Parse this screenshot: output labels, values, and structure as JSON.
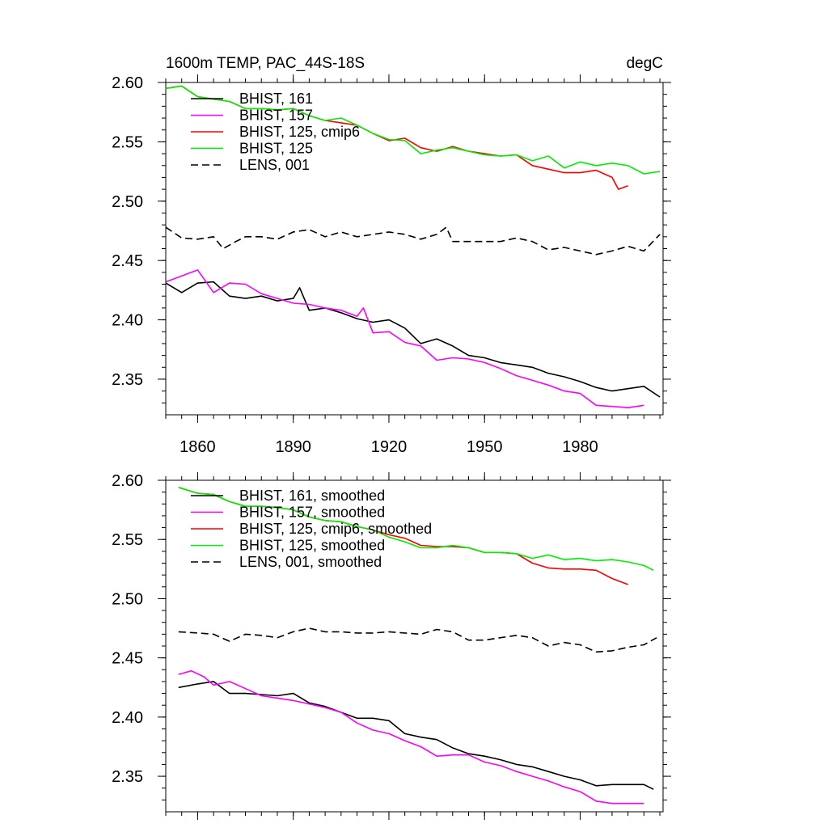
{
  "chart_data": [
    {
      "type": "line",
      "title_left": "1600m TEMP, PAC_44S-18S",
      "title_right": "degC",
      "xlim": [
        1850,
        2006
      ],
      "ylim": [
        2.32,
        2.6
      ],
      "y_ticks": [
        "2.60",
        "2.55",
        "2.50",
        "2.45",
        "2.40",
        "2.35"
      ],
      "y_tick_values": [
        2.6,
        2.55,
        2.5,
        2.45,
        2.4,
        2.35
      ],
      "x_ticks": [
        "1860",
        "1890",
        "1920",
        "1950",
        "1980"
      ],
      "x_tick_values": [
        1860,
        1890,
        1920,
        1950,
        1980
      ],
      "legend_position": "top-left",
      "series": [
        {
          "name": "BHIST, 161",
          "color": "#000000",
          "dash": "solid",
          "x": [
            1850,
            1855,
            1860,
            1865,
            1870,
            1875,
            1880,
            1885,
            1890,
            1892,
            1895,
            1900,
            1905,
            1910,
            1915,
            1920,
            1925,
            1930,
            1935,
            1940,
            1945,
            1950,
            1955,
            1960,
            1965,
            1970,
            1975,
            1980,
            1985,
            1990,
            1995,
            2000,
            2005
          ],
          "y": [
            2.431,
            2.423,
            2.431,
            2.432,
            2.42,
            2.418,
            2.42,
            2.416,
            2.418,
            2.427,
            2.408,
            2.41,
            2.406,
            2.401,
            2.398,
            2.4,
            2.393,
            2.38,
            2.384,
            2.378,
            2.37,
            2.368,
            2.364,
            2.362,
            2.36,
            2.355,
            2.352,
            2.348,
            2.343,
            2.34,
            2.342,
            2.344,
            2.335
          ]
        },
        {
          "name": "BHIST, 157",
          "color": "#ff00ff",
          "dash": "solid",
          "x": [
            1850,
            1855,
            1860,
            1865,
            1870,
            1875,
            1880,
            1885,
            1890,
            1895,
            1900,
            1905,
            1910,
            1912,
            1915,
            1920,
            1925,
            1930,
            1935,
            1940,
            1945,
            1950,
            1955,
            1960,
            1965,
            1970,
            1975,
            1980,
            1985,
            1990,
            1995,
            2000
          ],
          "y": [
            2.432,
            2.437,
            2.442,
            2.423,
            2.431,
            2.43,
            2.422,
            2.418,
            2.414,
            2.413,
            2.41,
            2.408,
            2.403,
            2.41,
            2.389,
            2.39,
            2.381,
            2.378,
            2.366,
            2.368,
            2.367,
            2.364,
            2.359,
            2.353,
            2.349,
            2.345,
            2.34,
            2.338,
            2.328,
            2.327,
            2.326,
            2.328
          ]
        },
        {
          "name": "BHIST, 125, cmip6",
          "color": "#ff0000",
          "dash": "solid",
          "x": [
            1850,
            1855,
            1860,
            1865,
            1870,
            1875,
            1880,
            1885,
            1890,
            1895,
            1900,
            1905,
            1910,
            1915,
            1920,
            1925,
            1930,
            1935,
            1940,
            1945,
            1950,
            1955,
            1960,
            1965,
            1970,
            1975,
            1980,
            1985,
            1990,
            1992,
            1995
          ],
          "y": [
            2.595,
            2.597,
            2.588,
            2.586,
            2.584,
            2.578,
            2.578,
            2.577,
            2.578,
            2.572,
            2.568,
            2.566,
            2.564,
            2.557,
            2.551,
            2.553,
            2.545,
            2.542,
            2.546,
            2.542,
            2.54,
            2.538,
            2.539,
            2.53,
            2.527,
            2.524,
            2.524,
            2.526,
            2.52,
            2.51,
            2.513
          ]
        },
        {
          "name": "BHIST, 125",
          "color": "#00ee00",
          "dash": "solid",
          "x": [
            1850,
            1855,
            1860,
            1865,
            1870,
            1875,
            1880,
            1885,
            1890,
            1895,
            1900,
            1905,
            1910,
            1915,
            1920,
            1925,
            1930,
            1935,
            1940,
            1945,
            1950,
            1955,
            1960,
            1965,
            1970,
            1975,
            1980,
            1985,
            1990,
            1995,
            2000,
            2005
          ],
          "y": [
            2.595,
            2.597,
            2.588,
            2.586,
            2.584,
            2.578,
            2.578,
            2.577,
            2.578,
            2.572,
            2.568,
            2.57,
            2.564,
            2.557,
            2.552,
            2.551,
            2.54,
            2.543,
            2.545,
            2.542,
            2.539,
            2.538,
            2.539,
            2.534,
            2.538,
            2.528,
            2.533,
            2.53,
            2.532,
            2.53,
            2.523,
            2.525
          ]
        },
        {
          "name": "LENS, 001",
          "color": "#000000",
          "dash": "dashed",
          "x": [
            1850,
            1855,
            1860,
            1865,
            1868,
            1872,
            1875,
            1880,
            1885,
            1890,
            1895,
            1900,
            1905,
            1910,
            1915,
            1920,
            1925,
            1930,
            1935,
            1938,
            1940,
            1945,
            1950,
            1955,
            1960,
            1965,
            1970,
            1975,
            1980,
            1985,
            1990,
            1995,
            2000,
            2005
          ],
          "y": [
            2.478,
            2.469,
            2.468,
            2.47,
            2.46,
            2.466,
            2.47,
            2.47,
            2.468,
            2.474,
            2.476,
            2.47,
            2.474,
            2.47,
            2.472,
            2.474,
            2.472,
            2.468,
            2.472,
            2.478,
            2.466,
            2.466,
            2.466,
            2.466,
            2.469,
            2.466,
            2.459,
            2.461,
            2.458,
            2.455,
            2.458,
            2.462,
            2.458,
            2.472
          ]
        }
      ]
    },
    {
      "type": "line",
      "title_left": "",
      "title_right": "",
      "xlim": [
        1850,
        2006
      ],
      "ylim": [
        2.32,
        2.6
      ],
      "y_ticks": [
        "2.60",
        "2.55",
        "2.50",
        "2.45",
        "2.40",
        "2.35"
      ],
      "y_tick_values": [
        2.6,
        2.55,
        2.5,
        2.45,
        2.4,
        2.35
      ],
      "x_ticks": [],
      "x_tick_values": [
        1860,
        1890,
        1920,
        1950,
        1980
      ],
      "legend_position": "top-left",
      "series": [
        {
          "name": "BHIST, 161, smoothed",
          "color": "#000000",
          "dash": "solid",
          "x": [
            1854,
            1860,
            1865,
            1870,
            1875,
            1880,
            1885,
            1890,
            1895,
            1900,
            1905,
            1910,
            1915,
            1920,
            1925,
            1930,
            1935,
            1940,
            1945,
            1950,
            1955,
            1960,
            1965,
            1970,
            1975,
            1980,
            1985,
            1990,
            1995,
            2000,
            2003
          ],
          "y": [
            2.425,
            2.428,
            2.43,
            2.42,
            2.42,
            2.419,
            2.418,
            2.42,
            2.412,
            2.409,
            2.404,
            2.399,
            2.399,
            2.397,
            2.386,
            2.383,
            2.381,
            2.374,
            2.369,
            2.367,
            2.364,
            2.36,
            2.358,
            2.354,
            2.35,
            2.347,
            2.342,
            2.343,
            2.343,
            2.343,
            2.339
          ]
        },
        {
          "name": "BHIST, 157, smoothed",
          "color": "#ff00ff",
          "dash": "solid",
          "x": [
            1854,
            1858,
            1862,
            1865,
            1870,
            1875,
            1880,
            1885,
            1890,
            1895,
            1900,
            1905,
            1910,
            1915,
            1920,
            1925,
            1930,
            1935,
            1940,
            1945,
            1950,
            1955,
            1960,
            1965,
            1970,
            1975,
            1980,
            1985,
            1990,
            1995,
            2000
          ],
          "y": [
            2.436,
            2.439,
            2.434,
            2.427,
            2.43,
            2.424,
            2.418,
            2.416,
            2.414,
            2.411,
            2.408,
            2.404,
            2.395,
            2.389,
            2.386,
            2.38,
            2.375,
            2.367,
            2.368,
            2.368,
            2.362,
            2.359,
            2.354,
            2.35,
            2.346,
            2.341,
            2.337,
            2.329,
            2.327,
            2.327,
            2.327
          ]
        },
        {
          "name": "BHIST, 125, cmip6, smoothed",
          "color": "#ff0000",
          "dash": "solid",
          "x": [
            1854,
            1860,
            1865,
            1870,
            1875,
            1880,
            1885,
            1890,
            1895,
            1900,
            1905,
            1910,
            1915,
            1920,
            1925,
            1930,
            1935,
            1940,
            1945,
            1950,
            1955,
            1960,
            1965,
            1970,
            1975,
            1980,
            1985,
            1990,
            1995
          ],
          "y": [
            2.594,
            2.589,
            2.588,
            2.582,
            2.578,
            2.578,
            2.577,
            2.575,
            2.569,
            2.566,
            2.565,
            2.561,
            2.558,
            2.554,
            2.551,
            2.545,
            2.544,
            2.544,
            2.543,
            2.539,
            2.539,
            2.538,
            2.53,
            2.526,
            2.525,
            2.525,
            2.524,
            2.517,
            2.512
          ]
        },
        {
          "name": "BHIST, 125, smoothed",
          "color": "#00ee00",
          "dash": "solid",
          "x": [
            1854,
            1860,
            1865,
            1870,
            1875,
            1880,
            1885,
            1890,
            1895,
            1900,
            1905,
            1910,
            1915,
            1920,
            1925,
            1930,
            1935,
            1940,
            1945,
            1950,
            1955,
            1960,
            1965,
            1970,
            1975,
            1980,
            1985,
            1990,
            1995,
            2000,
            2003
          ],
          "y": [
            2.594,
            2.589,
            2.588,
            2.582,
            2.578,
            2.578,
            2.577,
            2.575,
            2.569,
            2.566,
            2.565,
            2.561,
            2.558,
            2.552,
            2.548,
            2.543,
            2.543,
            2.545,
            2.543,
            2.539,
            2.539,
            2.538,
            2.534,
            2.537,
            2.533,
            2.534,
            2.532,
            2.533,
            2.531,
            2.528,
            2.524
          ]
        },
        {
          "name": "LENS, 001, smoothed",
          "color": "#000000",
          "dash": "dashed",
          "x": [
            1854,
            1860,
            1865,
            1870,
            1875,
            1880,
            1885,
            1890,
            1895,
            1900,
            1905,
            1910,
            1915,
            1920,
            1925,
            1930,
            1935,
            1940,
            1945,
            1950,
            1955,
            1960,
            1965,
            1970,
            1975,
            1980,
            1985,
            1990,
            1995,
            2000,
            2004
          ],
          "y": [
            2.472,
            2.471,
            2.47,
            2.464,
            2.47,
            2.469,
            2.467,
            2.472,
            2.475,
            2.472,
            2.472,
            2.471,
            2.471,
            2.472,
            2.471,
            2.47,
            2.474,
            2.472,
            2.465,
            2.465,
            2.467,
            2.469,
            2.467,
            2.46,
            2.463,
            2.461,
            2.455,
            2.456,
            2.459,
            2.461,
            2.467
          ]
        }
      ]
    }
  ]
}
